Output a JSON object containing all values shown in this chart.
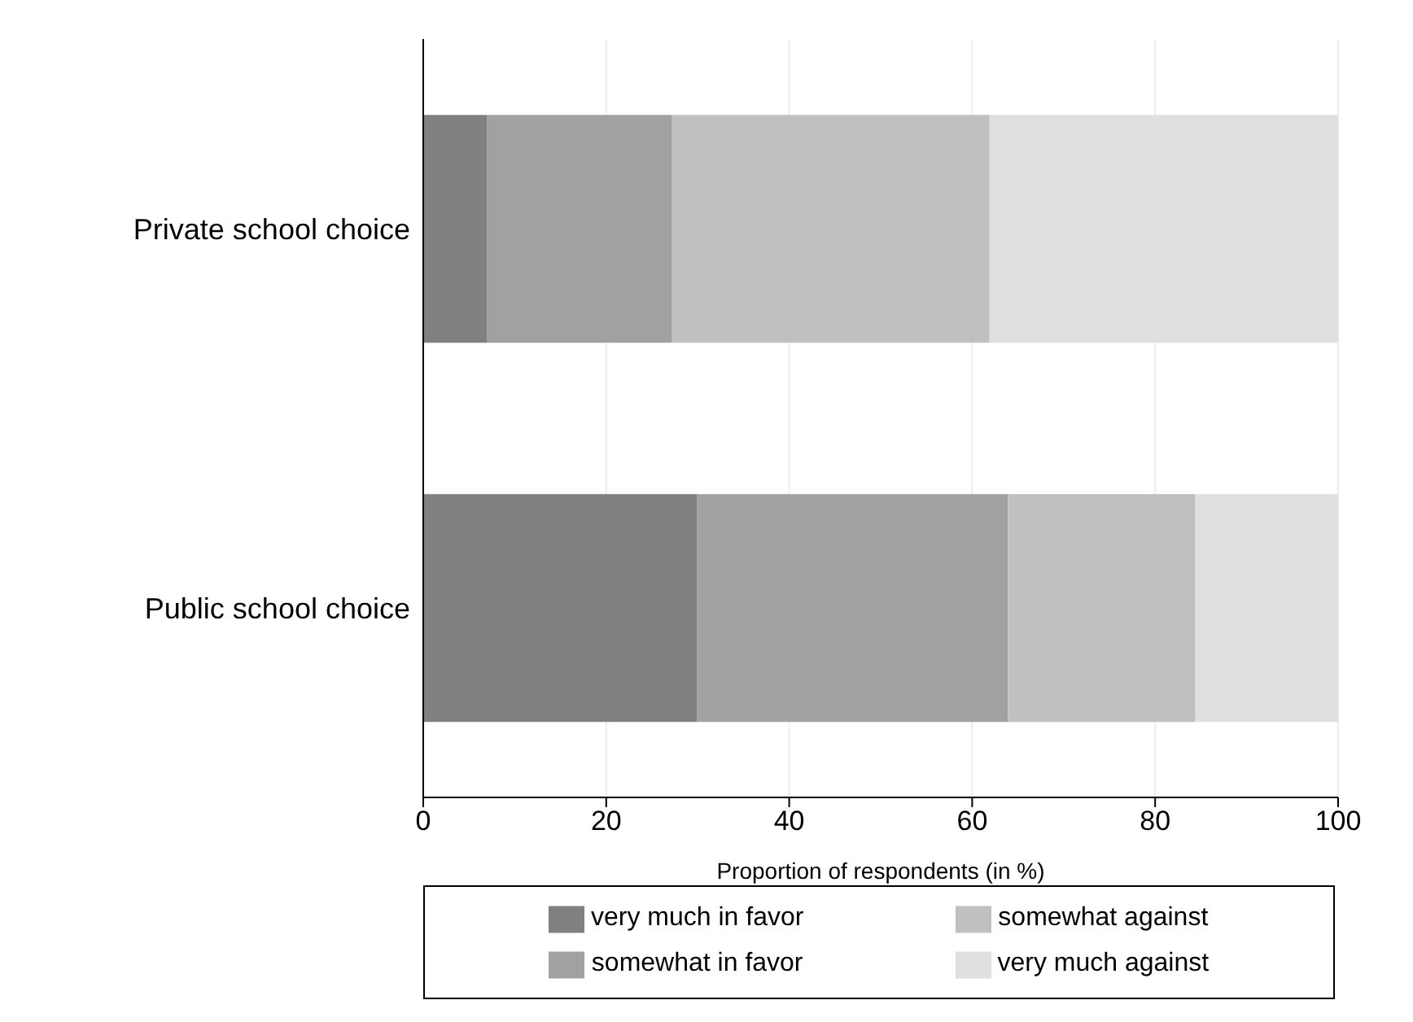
{
  "chart_data": {
    "type": "bar",
    "orientation": "horizontal",
    "stacked": true,
    "categories": [
      "Private school choice",
      "Public school choice"
    ],
    "series": [
      {
        "name": "very much in favor",
        "color": "#808080",
        "values": [
          7.0,
          29.9
        ]
      },
      {
        "name": "somewhat in favor",
        "color": "#a1a1a1",
        "values": [
          20.2,
          34.0
        ]
      },
      {
        "name": "somewhat against",
        "color": "#c0c0c0",
        "values": [
          34.7,
          20.5
        ]
      },
      {
        "name": "very much against",
        "color": "#e0e0e0",
        "values": [
          38.1,
          15.6
        ]
      }
    ],
    "xlabel": "Proportion of respondents (in %)",
    "xlim": [
      0,
      100
    ],
    "xticks": [
      0,
      20,
      40,
      60,
      80,
      100
    ],
    "grid": "x",
    "legend": "bottom"
  }
}
